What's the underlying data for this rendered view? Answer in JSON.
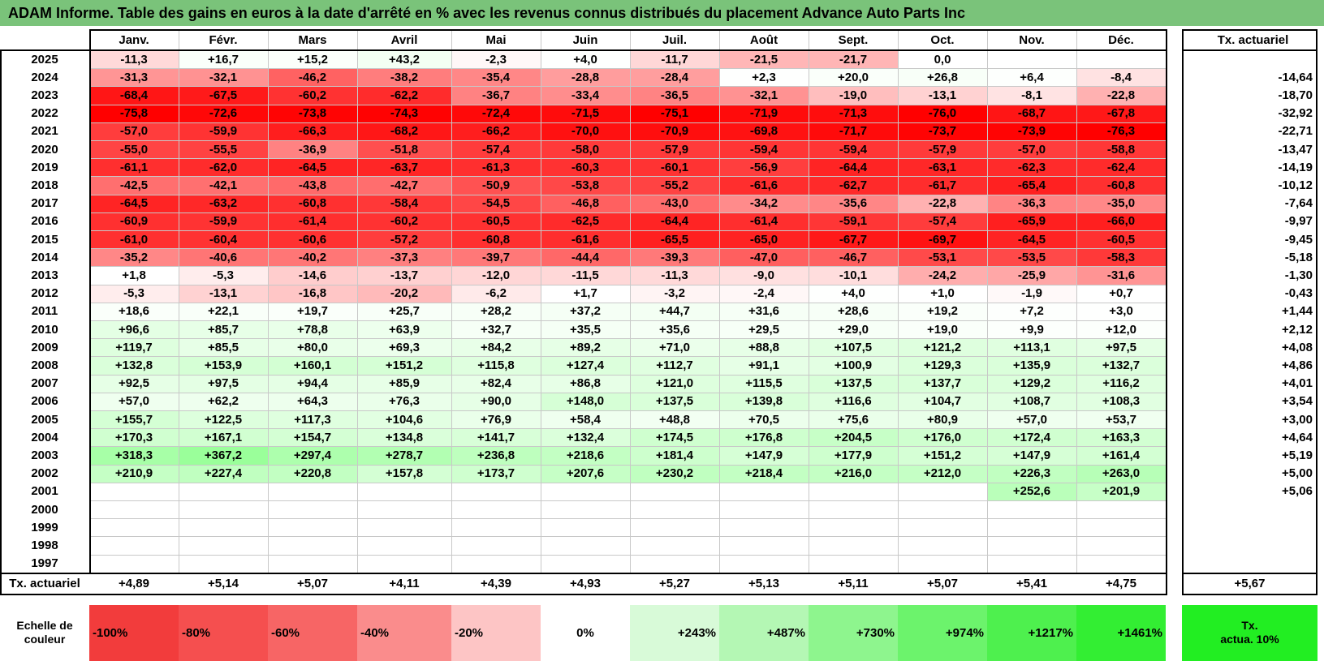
{
  "title": "ADAM Informe. Table des gains en euros à la date d'arrêté en % avec les revenus connus distribués du placement Advance Auto Parts Inc",
  "months": [
    "Janv.",
    "Févr.",
    "Mars",
    "Avril",
    "Mai",
    "Juin",
    "Juil.",
    "Août",
    "Sept.",
    "Oct.",
    "Nov.",
    "Déc."
  ],
  "rate_header": "Tx. actuariel",
  "rows": [
    {
      "year": "2025",
      "values": [
        "-11,3",
        "+16,7",
        "+15,2",
        "+43,2",
        "-2,3",
        "+4,0",
        "-11,7",
        "-21,5",
        "-21,7",
        "0,0",
        "",
        ""
      ],
      "rate": ""
    },
    {
      "year": "2024",
      "values": [
        "-31,3",
        "-32,1",
        "-46,2",
        "-38,2",
        "-35,4",
        "-28,8",
        "-28,4",
        "+2,3",
        "+20,0",
        "+26,8",
        "+6,4",
        "-8,4"
      ],
      "rate": "-14,64"
    },
    {
      "year": "2023",
      "values": [
        "-68,4",
        "-67,5",
        "-60,2",
        "-62,2",
        "-36,7",
        "-33,4",
        "-36,5",
        "-32,1",
        "-19,0",
        "-13,1",
        "-8,1",
        "-22,8"
      ],
      "rate": "-18,70"
    },
    {
      "year": "2022",
      "values": [
        "-75,8",
        "-72,6",
        "-73,8",
        "-74,3",
        "-72,4",
        "-71,5",
        "-75,1",
        "-71,9",
        "-71,3",
        "-76,0",
        "-68,7",
        "-67,8"
      ],
      "rate": "-32,92"
    },
    {
      "year": "2021",
      "values": [
        "-57,0",
        "-59,9",
        "-66,3",
        "-68,2",
        "-66,2",
        "-70,0",
        "-70,9",
        "-69,8",
        "-71,7",
        "-73,7",
        "-73,9",
        "-76,3"
      ],
      "rate": "-22,71"
    },
    {
      "year": "2020",
      "values": [
        "-55,0",
        "-55,5",
        "-36,9",
        "-51,8",
        "-57,4",
        "-58,0",
        "-57,9",
        "-59,4",
        "-59,4",
        "-57,9",
        "-57,0",
        "-58,8"
      ],
      "rate": "-13,47"
    },
    {
      "year": "2019",
      "values": [
        "-61,1",
        "-62,0",
        "-64,5",
        "-63,7",
        "-61,3",
        "-60,3",
        "-60,1",
        "-56,9",
        "-64,4",
        "-63,1",
        "-62,3",
        "-62,4"
      ],
      "rate": "-14,19"
    },
    {
      "year": "2018",
      "values": [
        "-42,5",
        "-42,1",
        "-43,8",
        "-42,7",
        "-50,9",
        "-53,8",
        "-55,2",
        "-61,6",
        "-62,7",
        "-61,7",
        "-65,4",
        "-60,8"
      ],
      "rate": "-10,12"
    },
    {
      "year": "2017",
      "values": [
        "-64,5",
        "-63,2",
        "-60,8",
        "-58,4",
        "-54,5",
        "-46,8",
        "-43,0",
        "-34,2",
        "-35,6",
        "-22,8",
        "-36,3",
        "-35,0"
      ],
      "rate": "-7,64"
    },
    {
      "year": "2016",
      "values": [
        "-60,9",
        "-59,9",
        "-61,4",
        "-60,2",
        "-60,5",
        "-62,5",
        "-64,4",
        "-61,4",
        "-59,1",
        "-57,4",
        "-65,9",
        "-66,0"
      ],
      "rate": "-9,97"
    },
    {
      "year": "2015",
      "values": [
        "-61,0",
        "-60,4",
        "-60,6",
        "-57,2",
        "-60,8",
        "-61,6",
        "-65,5",
        "-65,0",
        "-67,7",
        "-69,7",
        "-64,5",
        "-60,5"
      ],
      "rate": "-9,45"
    },
    {
      "year": "2014",
      "values": [
        "-35,2",
        "-40,6",
        "-40,2",
        "-37,3",
        "-39,7",
        "-44,4",
        "-39,3",
        "-47,0",
        "-46,7",
        "-53,1",
        "-53,5",
        "-58,3"
      ],
      "rate": "-5,18"
    },
    {
      "year": "2013",
      "values": [
        "+1,8",
        "-5,3",
        "-14,6",
        "-13,7",
        "-12,0",
        "-11,5",
        "-11,3",
        "-9,0",
        "-10,1",
        "-24,2",
        "-25,9",
        "-31,6"
      ],
      "rate": "-1,30"
    },
    {
      "year": "2012",
      "values": [
        "-5,3",
        "-13,1",
        "-16,8",
        "-20,2",
        "-6,2",
        "+1,7",
        "-3,2",
        "-2,4",
        "+4,0",
        "+1,0",
        "-1,9",
        "+0,7"
      ],
      "rate": "-0,43"
    },
    {
      "year": "2011",
      "values": [
        "+18,6",
        "+22,1",
        "+19,7",
        "+25,7",
        "+28,2",
        "+37,2",
        "+44,7",
        "+31,6",
        "+28,6",
        "+19,2",
        "+7,2",
        "+3,0"
      ],
      "rate": "+1,44"
    },
    {
      "year": "2010",
      "values": [
        "+96,6",
        "+85,7",
        "+78,8",
        "+63,9",
        "+32,7",
        "+35,5",
        "+35,6",
        "+29,5",
        "+29,0",
        "+19,0",
        "+9,9",
        "+12,0"
      ],
      "rate": "+2,12"
    },
    {
      "year": "2009",
      "values": [
        "+119,7",
        "+85,5",
        "+80,0",
        "+69,3",
        "+84,2",
        "+89,2",
        "+71,0",
        "+88,8",
        "+107,5",
        "+121,2",
        "+113,1",
        "+97,5"
      ],
      "rate": "+4,08"
    },
    {
      "year": "2008",
      "values": [
        "+132,8",
        "+153,9",
        "+160,1",
        "+151,2",
        "+115,8",
        "+127,4",
        "+112,7",
        "+91,1",
        "+100,9",
        "+129,3",
        "+135,9",
        "+132,7"
      ],
      "rate": "+4,86"
    },
    {
      "year": "2007",
      "values": [
        "+92,5",
        "+97,5",
        "+94,4",
        "+85,9",
        "+82,4",
        "+86,8",
        "+121,0",
        "+115,5",
        "+137,5",
        "+137,7",
        "+129,2",
        "+116,2"
      ],
      "rate": "+4,01"
    },
    {
      "year": "2006",
      "values": [
        "+57,0",
        "+62,2",
        "+64,3",
        "+76,3",
        "+90,0",
        "+148,0",
        "+137,5",
        "+139,8",
        "+116,6",
        "+104,7",
        "+108,7",
        "+108,3"
      ],
      "rate": "+3,54"
    },
    {
      "year": "2005",
      "values": [
        "+155,7",
        "+122,5",
        "+117,3",
        "+104,6",
        "+76,9",
        "+58,4",
        "+48,8",
        "+70,5",
        "+75,6",
        "+80,9",
        "+57,0",
        "+53,7"
      ],
      "rate": "+3,00"
    },
    {
      "year": "2004",
      "values": [
        "+170,3",
        "+167,1",
        "+154,7",
        "+134,8",
        "+141,7",
        "+132,4",
        "+174,5",
        "+176,8",
        "+204,5",
        "+176,0",
        "+172,4",
        "+163,3"
      ],
      "rate": "+4,64"
    },
    {
      "year": "2003",
      "values": [
        "+318,3",
        "+367,2",
        "+297,4",
        "+278,7",
        "+236,8",
        "+218,6",
        "+181,4",
        "+147,9",
        "+177,9",
        "+151,2",
        "+147,9",
        "+161,4"
      ],
      "rate": "+5,19"
    },
    {
      "year": "2002",
      "values": [
        "+210,9",
        "+227,4",
        "+220,8",
        "+157,8",
        "+173,7",
        "+207,6",
        "+230,2",
        "+218,4",
        "+216,0",
        "+212,0",
        "+226,3",
        "+263,0"
      ],
      "rate": "+5,00"
    },
    {
      "year": "2001",
      "values": [
        "",
        "",
        "",
        "",
        "",
        "",
        "",
        "",
        "",
        "",
        "+252,6",
        "+201,9"
      ],
      "rate": "+5,06"
    },
    {
      "year": "2000",
      "values": [
        "",
        "",
        "",
        "",
        "",
        "",
        "",
        "",
        "",
        "",
        "",
        ""
      ],
      "rate": ""
    },
    {
      "year": "1999",
      "values": [
        "",
        "",
        "",
        "",
        "",
        "",
        "",
        "",
        "",
        "",
        "",
        ""
      ],
      "rate": ""
    },
    {
      "year": "1998",
      "values": [
        "",
        "",
        "",
        "",
        "",
        "",
        "",
        "",
        "",
        "",
        "",
        ""
      ],
      "rate": ""
    },
    {
      "year": "1997",
      "values": [
        "",
        "",
        "",
        "",
        "",
        "",
        "",
        "",
        "",
        "",
        "",
        ""
      ],
      "rate": ""
    }
  ],
  "footer": {
    "label": "Tx. actuariel",
    "values": [
      "+4,89",
      "+5,14",
      "+5,07",
      "+4,11",
      "+4,39",
      "+4,93",
      "+5,27",
      "+5,13",
      "+5,11",
      "+5,07",
      "+5,41",
      "+4,75"
    ],
    "rate": "+5,67"
  },
  "legend": {
    "label_line1": "Echelle de",
    "label_line2": "couleur",
    "steps": [
      {
        "text": "-100%",
        "color": "#f23c3c",
        "align": "left"
      },
      {
        "text": "-80%",
        "color": "#f54f4f",
        "align": "left"
      },
      {
        "text": "-60%",
        "color": "#f76565",
        "align": "left"
      },
      {
        "text": "-40%",
        "color": "#fa8c8c",
        "align": "left"
      },
      {
        "text": "-20%",
        "color": "#fdc5c5",
        "align": "left"
      },
      {
        "text": "0%",
        "color": "#ffffff",
        "align": "center"
      },
      {
        "text": "+243%",
        "color": "#d8fad8",
        "align": "right"
      },
      {
        "text": "+487%",
        "color": "#b4f7b4",
        "align": "right"
      },
      {
        "text": "+730%",
        "color": "#8ef58e",
        "align": "right"
      },
      {
        "text": "+974%",
        "color": "#6cf36c",
        "align": "right"
      },
      {
        "text": "+1217%",
        "color": "#4ef04e",
        "align": "right"
      },
      {
        "text": "+1461%",
        "color": "#33ee33",
        "align": "right"
      }
    ],
    "rate_line1": "Tx.",
    "rate_line2": "actua. 10%",
    "rate_color": "#22ee22"
  },
  "colors": {
    "title_bg": "#7ac37a",
    "negative_max": "#ff0000",
    "positive_max": "#33ee33"
  }
}
